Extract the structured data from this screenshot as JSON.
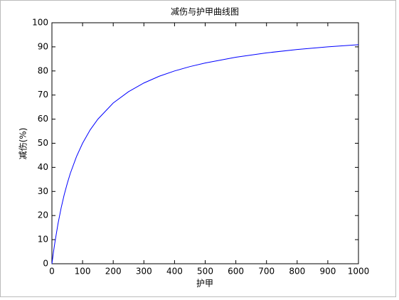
{
  "chart_data": {
    "type": "line",
    "title": "减伤与护甲曲线图",
    "xlabel": "护甲",
    "ylabel": "减伤(%)",
    "x": [
      0,
      5,
      10,
      20,
      30,
      40,
      50,
      60,
      80,
      100,
      125,
      150,
      200,
      250,
      300,
      350,
      400,
      450,
      500,
      600,
      700,
      800,
      900,
      1000
    ],
    "series": [
      {
        "color": "#0000ff",
        "values": [
          0,
          4.8,
          9.1,
          16.7,
          23.1,
          28.6,
          33.3,
          37.5,
          44.4,
          50,
          55.6,
          60,
          66.7,
          71.4,
          75,
          77.8,
          80,
          81.8,
          83.3,
          85.7,
          87.5,
          88.9,
          90,
          90.9
        ]
      }
    ],
    "xlim": [
      0,
      1000
    ],
    "xticks": [
      0,
      100,
      200,
      300,
      400,
      500,
      600,
      700,
      800,
      900,
      1000
    ],
    "ylim": [
      0,
      100
    ],
    "yticks": [
      0,
      10,
      20,
      30,
      40,
      50,
      60,
      70,
      80,
      90,
      100
    ],
    "grid": false
  }
}
